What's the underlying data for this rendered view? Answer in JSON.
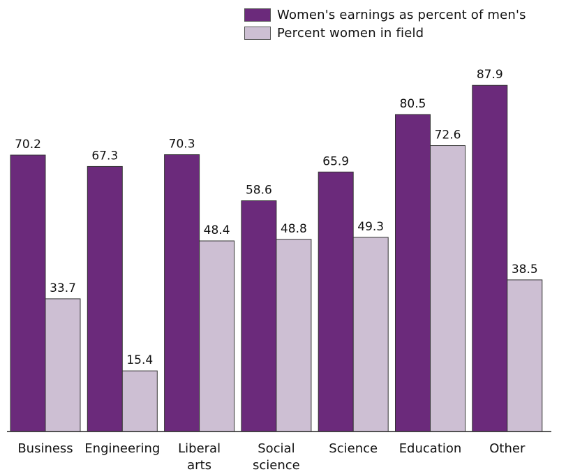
{
  "chart_data": {
    "type": "bar",
    "title": "",
    "xlabel": "",
    "ylabel": "",
    "ylim": [
      0,
      100
    ],
    "grid": false,
    "legend_position": "top-right",
    "categories": [
      [
        "Business"
      ],
      [
        "Engineering"
      ],
      [
        "Liberal",
        "arts"
      ],
      [
        "Social",
        "science"
      ],
      [
        "Science"
      ],
      [
        "Education"
      ],
      [
        "Other"
      ]
    ],
    "series": [
      {
        "name": "Women's earnings as percent of men's",
        "color": "#6b2a7b",
        "values": [
          70.2,
          67.3,
          70.3,
          58.6,
          65.9,
          80.5,
          87.9
        ]
      },
      {
        "name": "Percent women in field",
        "color": "#cdbfd3",
        "values": [
          33.7,
          15.4,
          48.4,
          48.8,
          49.3,
          72.6,
          38.5
        ]
      }
    ]
  }
}
